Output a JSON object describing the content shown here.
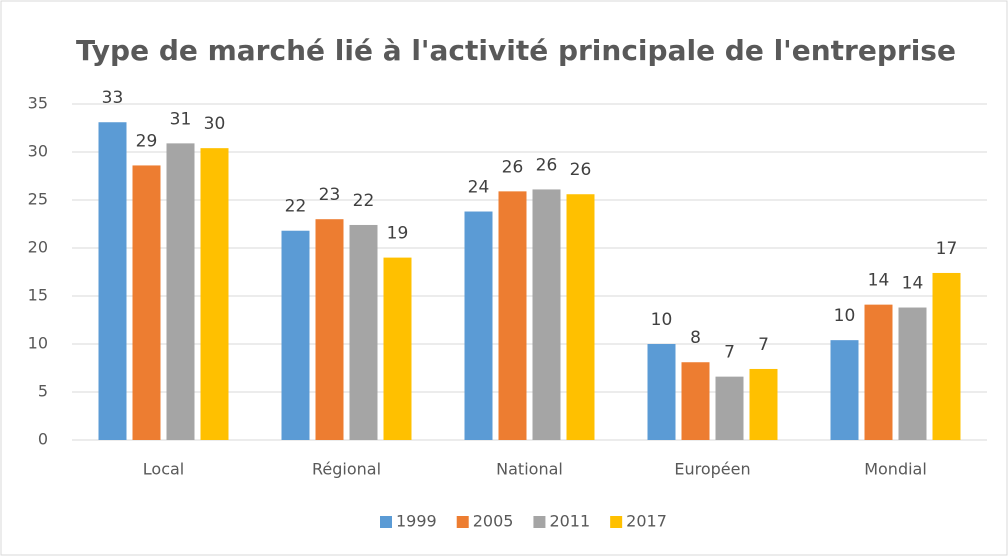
{
  "chart_data": {
    "type": "bar",
    "title": "Type de marché lié à l'activité principale de l'entreprise",
    "categories": [
      "Local",
      "Régional",
      "National",
      "Européen",
      "Mondial"
    ],
    "series": [
      {
        "name": "1999",
        "color": "#5b9bd5",
        "values": [
          33.1,
          21.8,
          23.8,
          10.0,
          10.4
        ],
        "value_labels": [
          "33",
          "22",
          "24",
          "10",
          "10"
        ]
      },
      {
        "name": "2005",
        "color": "#ed7d31",
        "values": [
          28.6,
          23.0,
          25.9,
          8.1,
          14.1
        ],
        "value_labels": [
          "29",
          "23",
          "26",
          "8",
          "14"
        ]
      },
      {
        "name": "2011",
        "color": "#a5a5a5",
        "values": [
          30.9,
          22.4,
          26.1,
          6.6,
          13.8
        ],
        "value_labels": [
          "31",
          "22",
          "26",
          "7",
          "14"
        ]
      },
      {
        "name": "2017",
        "color": "#ffc000",
        "values": [
          30.4,
          19.0,
          25.6,
          7.4,
          17.4
        ],
        "value_labels": [
          "30",
          "19",
          "26",
          "7",
          "17"
        ]
      }
    ],
    "ylim": [
      0,
      35
    ],
    "yticks": [
      0,
      5,
      10,
      15,
      20,
      25,
      30,
      35
    ],
    "grid": true,
    "legend": "bottom"
  }
}
